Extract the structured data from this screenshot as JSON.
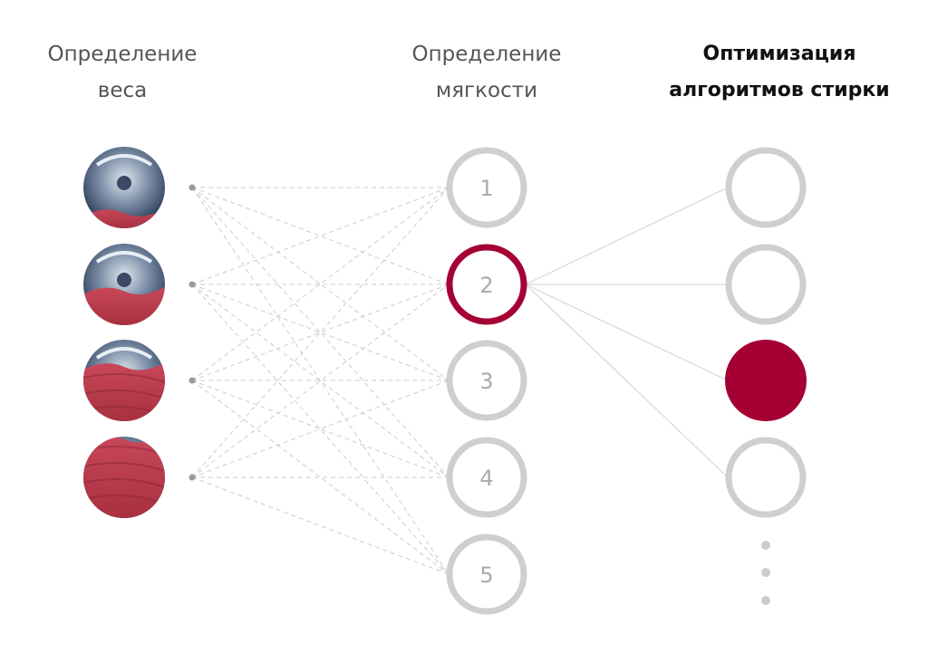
{
  "columns": [
    {
      "title_line1": "Определение",
      "title_line2": "веса"
    },
    {
      "title_line1": "Определение",
      "title_line2": "мягкости"
    },
    {
      "title_line1": "Оптимизация",
      "title_line2": "алгоритмов стирки"
    }
  ],
  "weight_inputs": [
    {
      "icon": "drum-load-small-icon"
    },
    {
      "icon": "drum-load-medium-icon"
    },
    {
      "icon": "drum-load-large-icon"
    },
    {
      "icon": "drum-load-full-icon"
    }
  ],
  "softness_nodes": [
    "1",
    "2",
    "3",
    "4",
    "5"
  ],
  "active_softness_node": "2",
  "wash_algorithm_nodes": 4,
  "active_algorithm_node": 3,
  "colors": {
    "accent": "#a50034",
    "node_gray": "#cfcfcf",
    "line": "#cccccc"
  }
}
